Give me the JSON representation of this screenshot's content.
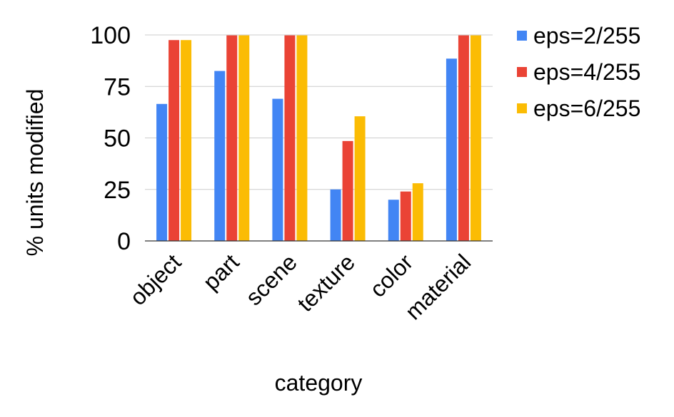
{
  "chart_data": {
    "type": "bar",
    "title": "",
    "xlabel": "category",
    "ylabel": "% units modified",
    "categories": [
      "object",
      "part",
      "scene",
      "texture",
      "color",
      "material"
    ],
    "ylim": [
      0,
      100
    ],
    "yticks": [
      0,
      25,
      50,
      75,
      100
    ],
    "grid": true,
    "legend_position": "right",
    "series": [
      {
        "name": "eps=2/255",
        "color": "#4285F4",
        "values": [
          66.5,
          82.5,
          69,
          25,
          20,
          88.5
        ]
      },
      {
        "name": "eps=4/255",
        "color": "#EA4335",
        "values": [
          97.5,
          99.8,
          99.8,
          48.5,
          24,
          99.8
        ]
      },
      {
        "name": "eps=6/255",
        "color": "#FBBC04",
        "values": [
          97.5,
          99.8,
          99.8,
          60.5,
          28,
          99.8
        ]
      }
    ]
  }
}
